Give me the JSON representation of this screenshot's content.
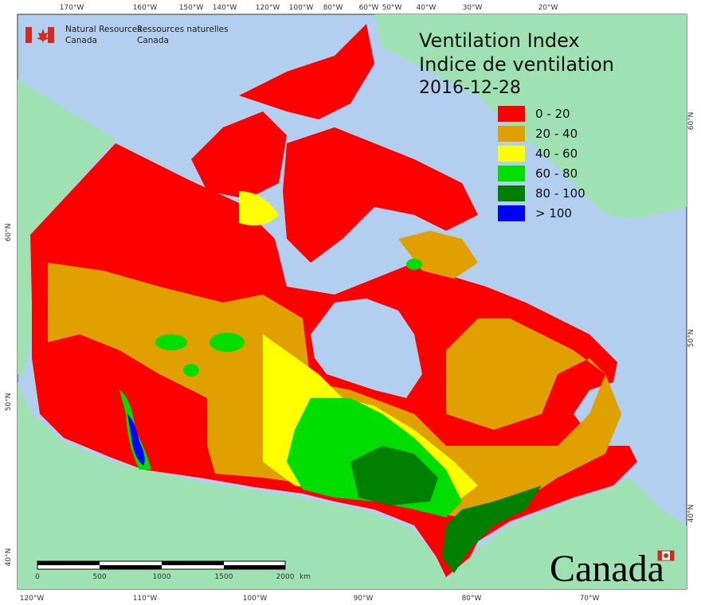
{
  "header": {
    "agency_en": [
      "Natural Resources",
      "Canada"
    ],
    "agency_fr": [
      "Ressources naturelles",
      "Canada"
    ]
  },
  "title": [
    "Ventilation Index",
    "Indice de ventilation"
  ],
  "date": "2016-12-28",
  "legend": [
    {
      "label": "0 - 20",
      "color": "#ff0000"
    },
    {
      "label": "20 - 40",
      "color": "#e0a000"
    },
    {
      "label": "40 - 60",
      "color": "#ffff00"
    },
    {
      "label": "60 - 80",
      "color": "#00dd00"
    },
    {
      "label": "80 - 100",
      "color": "#008000"
    },
    {
      "label": "> 100",
      "color": "#0000ff"
    }
  ],
  "graticule": {
    "top": [
      "170°W",
      "160°W",
      "150°W",
      "140°W",
      "120°W",
      "100°W",
      "80°W",
      "60°W",
      "50°W",
      "40°W",
      "30°W",
      "20°W"
    ],
    "bottom": [
      "120°W",
      "110°W",
      "100°W",
      "90°W",
      "80°W",
      "70°W"
    ],
    "left": [
      "60°N",
      "50°N",
      "40°N"
    ],
    "right": [
      "60°N",
      "50°N",
      "40°N"
    ]
  },
  "scale": {
    "labels": [
      "0",
      "500",
      "1000",
      "1500",
      "2000"
    ],
    "unit": "km"
  },
  "wordmark": "Canada"
}
